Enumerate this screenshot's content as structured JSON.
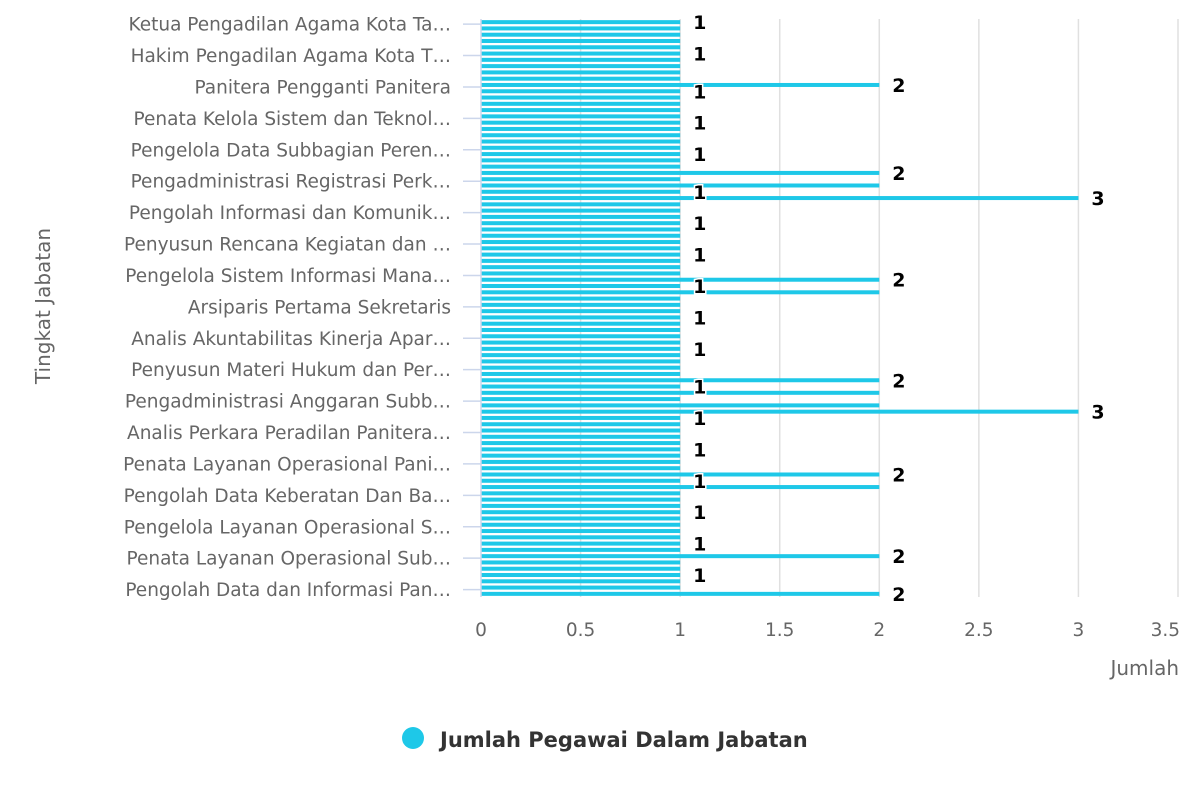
{
  "chart_data": {
    "type": "bar",
    "orientation": "horizontal",
    "title": "",
    "xlabel": "Jumlah",
    "ylabel": "Tingkat Jabatan",
    "xlim": [
      0,
      3.5
    ],
    "xticks": [
      "0",
      "0.5",
      "1",
      "1.5",
      "2",
      "2.5",
      "3",
      "3.5"
    ],
    "grid": true,
    "legend_position": "bottom-center",
    "label_step": 5,
    "visible_category_labels": [
      "Ketua Pengadilan Agama Kota Ta…",
      "Hakim Pengadilan Agama Kota T…",
      "Panitera Pengganti Panitera",
      "Penata Kelola Sistem dan Teknol…",
      "Pengelola Data Subbagian Peren…",
      "Pengadministrasi Registrasi Perk…",
      "Pengolah Informasi dan Komunik…",
      "Penyusun Rencana Kegiatan dan …",
      "Pengelola Sistem Informasi Mana…",
      "Arsiparis Pertama Sekretaris",
      "Analis Akuntabilitas Kinerja Apar…",
      "Penyusun Materi Hukum dan Per…",
      "Pengadministrasi Anggaran Subb…",
      "Analis Perkara Peradilan Panitera…",
      "Penata Layanan Operasional Pani…",
      "Pengolah Data Keberatan Dan Ba…",
      "Pengelola Layanan Operasional S…",
      "Penata Layanan Operasional Sub…",
      "Pengolah Data dan Informasi Pan…"
    ],
    "series": [
      {
        "name": "Jumlah Pegawai Dalam Jabatan",
        "color": "#1ec8e8",
        "values": [
          1,
          1,
          1,
          1,
          1,
          1,
          1,
          1,
          1,
          1,
          2,
          1,
          1,
          1,
          1,
          1,
          1,
          1,
          1,
          1,
          1,
          1,
          1,
          1,
          2,
          1,
          2,
          1,
          3,
          1,
          1,
          1,
          1,
          1,
          1,
          1,
          1,
          1,
          1,
          1,
          1,
          2,
          1,
          2,
          1,
          1,
          1,
          1,
          1,
          1,
          1,
          1,
          1,
          1,
          1,
          1,
          1,
          2,
          1,
          2,
          1,
          2,
          3,
          1,
          1,
          1,
          1,
          1,
          1,
          1,
          1,
          1,
          2,
          1,
          2,
          1,
          1,
          1,
          1,
          1,
          1,
          1,
          1,
          1,
          1,
          2,
          1,
          1,
          1,
          1,
          1,
          2
        ]
      }
    ]
  }
}
